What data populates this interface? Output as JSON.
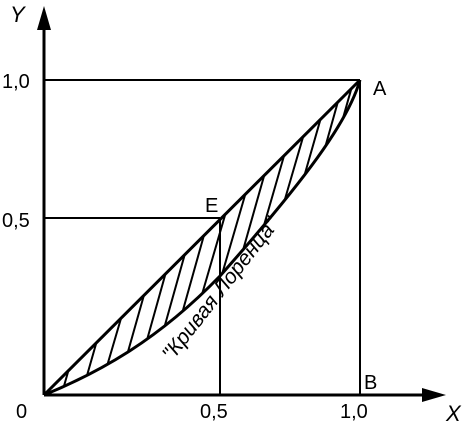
{
  "axes": {
    "y_label": "Y",
    "x_label": "X",
    "origin_label": "0"
  },
  "ticks": {
    "y_one": "1,0",
    "y_half": "0,5",
    "x_half": "0,5",
    "x_one": "1,0"
  },
  "points": {
    "a": "A",
    "b": "B",
    "e": "E"
  },
  "curve_label": "\"Кривая Лоренца\""
}
